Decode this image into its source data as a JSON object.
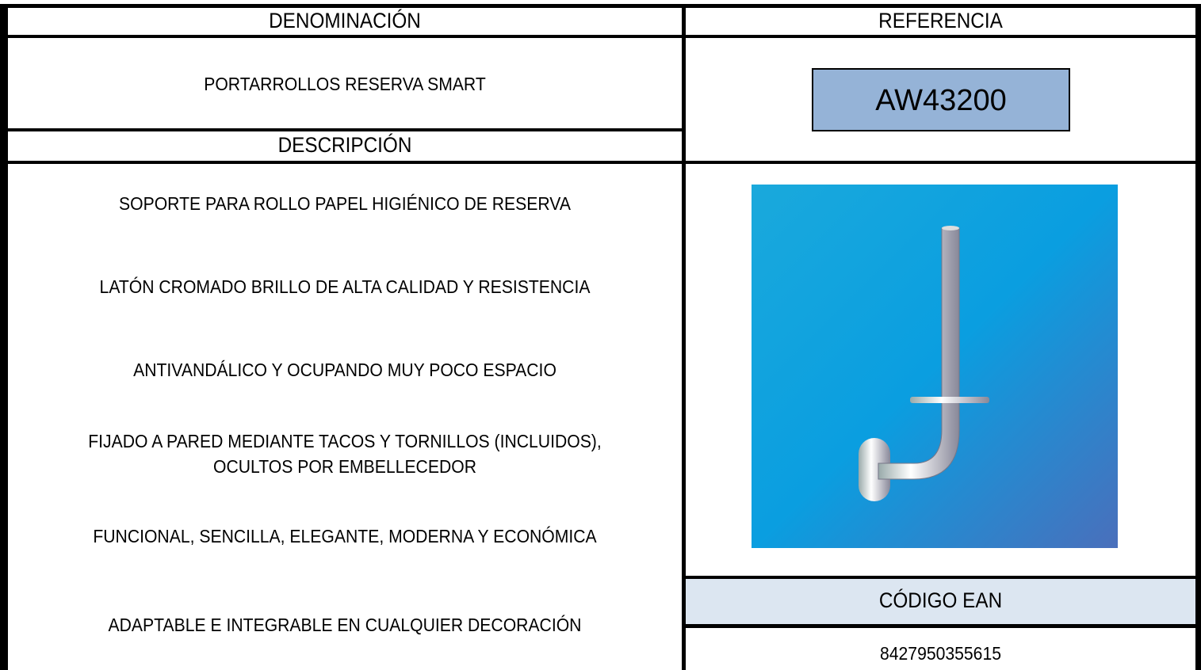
{
  "denominacion": {
    "header": "DENOMINACIÓN",
    "value": "PORTARROLLOS RESERVA SMART"
  },
  "referencia": {
    "header": "REFERENCIA",
    "value": "AW43200"
  },
  "descripcion": {
    "header": "DESCRIPCIÓN",
    "items": [
      "SOPORTE PARA ROLLO PAPEL HIGIÉNICO DE RESERVA",
      "LATÓN CROMADO BRILLO DE ALTA CALIDAD Y RESISTENCIA",
      "ANTIVANDÁLICO Y OCUPANDO MUY POCO ESPACIO",
      [
        "FIJADO A PARED MEDIANTE TACOS Y TORNILLOS (INCLUIDOS),",
        "OCULTOS POR EMBELLECEDOR"
      ],
      "FUNCIONAL, SENCILLA, ELEGANTE, MODERNA Y ECONÓMICA",
      "ADAPTABLE E INTEGRABLE EN CUALQUIER DECORACIÓN"
    ]
  },
  "ean": {
    "header": "CÓDIGO EAN",
    "value": "8427950355615"
  }
}
